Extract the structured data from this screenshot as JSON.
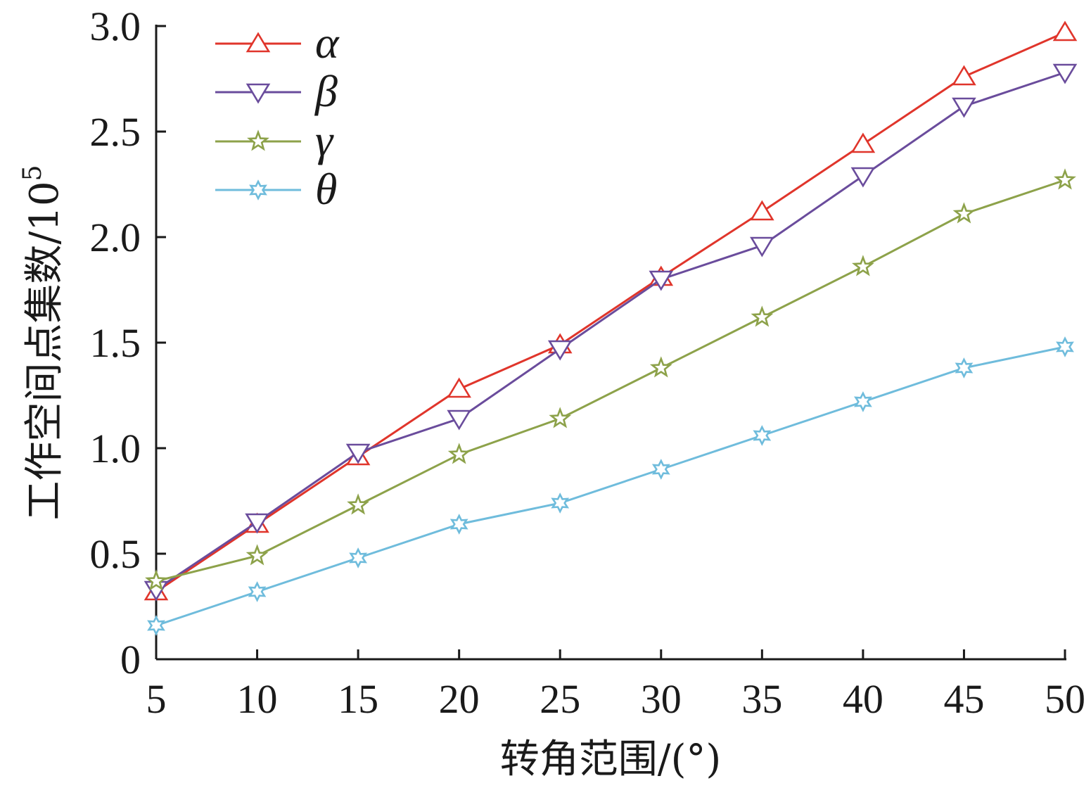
{
  "chart_data": {
    "type": "line",
    "title": "",
    "xlabel": "转角范围/(°)",
    "ylabel_main": "工作空间点集数/10",
    "ylabel_exp": "5",
    "x": [
      5,
      10,
      15,
      20,
      25,
      30,
      35,
      40,
      45,
      50
    ],
    "xlim": [
      5,
      50
    ],
    "ylim": [
      0,
      3
    ],
    "x_ticks": [
      "5",
      "10",
      "15",
      "20",
      "25",
      "30",
      "35",
      "40",
      "45",
      "50"
    ],
    "y_ticks": [
      {
        "value": 0,
        "label": "0"
      },
      {
        "value": 0.5,
        "label": "0.5"
      },
      {
        "value": 1.0,
        "label": "1.0"
      },
      {
        "value": 1.5,
        "label": "1.5"
      },
      {
        "value": 2.0,
        "label": "2.0"
      },
      {
        "value": 2.5,
        "label": "2.5"
      },
      {
        "value": 3.0,
        "label": "3.0"
      }
    ],
    "grid": false,
    "legend_position": "top-left",
    "series": [
      {
        "name": "α",
        "color": "#e0352b",
        "marker": "triangle-up",
        "values": [
          0.32,
          0.64,
          0.96,
          1.28,
          1.49,
          1.81,
          2.12,
          2.44,
          2.76,
          2.97
        ]
      },
      {
        "name": "β",
        "color": "#6a4c9c",
        "marker": "triangle-down",
        "values": [
          0.33,
          0.65,
          0.98,
          1.14,
          1.47,
          1.8,
          1.96,
          2.29,
          2.62,
          2.78
        ]
      },
      {
        "name": "γ",
        "color": "#8da24a",
        "marker": "star",
        "values": [
          0.37,
          0.49,
          0.73,
          0.97,
          1.14,
          1.38,
          1.62,
          1.86,
          2.11,
          2.27
        ]
      },
      {
        "name": "θ",
        "color": "#6fbcdc",
        "marker": "star6",
        "values": [
          0.16,
          0.32,
          0.48,
          0.64,
          0.74,
          0.9,
          1.06,
          1.22,
          1.38,
          1.48
        ]
      }
    ]
  }
}
